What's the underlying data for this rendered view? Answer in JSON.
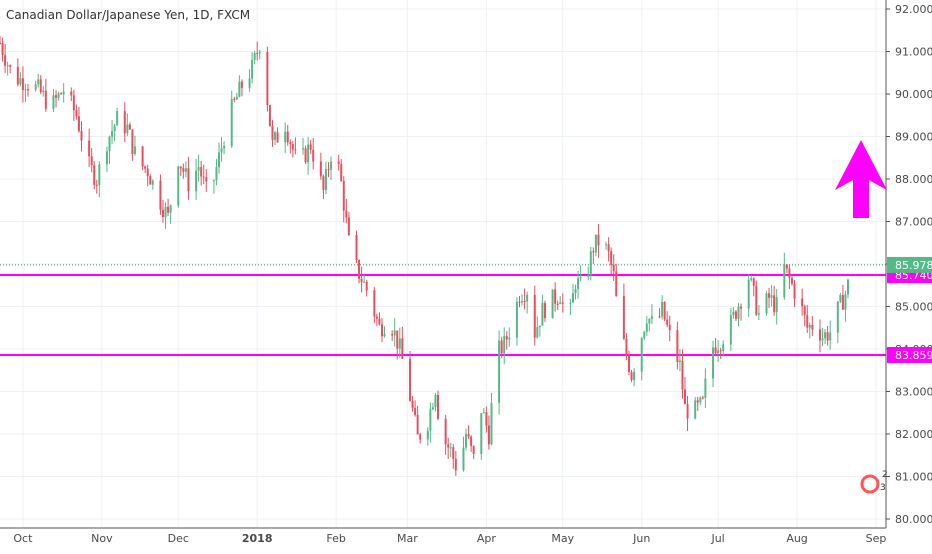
{
  "chart_title": "Canadian Dollar/Japanese Yen, 1D, FXCM",
  "colors": {
    "up": "#53b987",
    "down": "#eb4d5c",
    "level": "#ff00ff",
    "last_price_bg": "#53b987",
    "grid": "#eef1f5",
    "axis_text": "#4a4a4a",
    "last_price_line": "#3c8e5e"
  },
  "chart_data": {
    "type": "candlestick",
    "title": "Canadian Dollar/Japanese Yen, 1D, FXCM",
    "ylim": [
      79.9,
      92.2
    ],
    "y_ticks": [
      "80.000",
      "81.000",
      "82.000",
      "83.000",
      "84.000",
      "85.000",
      "86.000",
      "87.000",
      "88.000",
      "89.000",
      "90.000",
      "91.000",
      "92.000"
    ],
    "x_ticks": [
      "Oct",
      "Nov",
      "Dec",
      "2018",
      "Feb",
      "Mar",
      "Apr",
      "May",
      "Jun",
      "Jul",
      "Aug",
      "Sep"
    ],
    "x_tick_days": [
      9,
      40,
      70,
      101,
      132,
      160,
      191,
      221,
      252,
      282,
      313,
      344
    ],
    "xlim_days": [
      0,
      344
    ],
    "series_close": [
      [
        0,
        91.2
      ],
      [
        5,
        90.4
      ],
      [
        10,
        90.3
      ],
      [
        15,
        90.1
      ],
      [
        20,
        89.7
      ],
      [
        25,
        90.1
      ],
      [
        30,
        89.5
      ],
      [
        35,
        88.3
      ],
      [
        38,
        88.0
      ],
      [
        42,
        88.9
      ],
      [
        46,
        89.4
      ],
      [
        50,
        89.2
      ],
      [
        54,
        88.4
      ],
      [
        58,
        88.2
      ],
      [
        62,
        87.6
      ],
      [
        66,
        87.1
      ],
      [
        70,
        88.5
      ],
      [
        74,
        87.9
      ],
      [
        78,
        88.3
      ],
      [
        82,
        87.5
      ],
      [
        86,
        88.5
      ],
      [
        90,
        89.5
      ],
      [
        95,
        90.2
      ],
      [
        99,
        90.6
      ],
      [
        102,
        91.2
      ],
      [
        104,
        90.4
      ],
      [
        107,
        88.8
      ],
      [
        112,
        89.3
      ],
      [
        117,
        88.3
      ],
      [
        122,
        88.8
      ],
      [
        127,
        87.7
      ],
      [
        131,
        88.9
      ],
      [
        134,
        87.9
      ],
      [
        137,
        86.5
      ],
      [
        140,
        85.9
      ],
      [
        144,
        85.4
      ],
      [
        149,
        84.5
      ],
      [
        153,
        84.7
      ],
      [
        157,
        84.0
      ],
      [
        160,
        83.2
      ],
      [
        164,
        81.9
      ],
      [
        168,
        82.3
      ],
      [
        171,
        83.1
      ],
      [
        173,
        82.0
      ],
      [
        177,
        81.6
      ],
      [
        180,
        81.1
      ],
      [
        183,
        82.0
      ],
      [
        186,
        81.4
      ],
      [
        189,
        82.6
      ],
      [
        192,
        82.0
      ],
      [
        195,
        83.9
      ],
      [
        198,
        84.1
      ],
      [
        201,
        84.6
      ],
      [
        204,
        85.3
      ],
      [
        207,
        85.4
      ],
      [
        210,
        84.4
      ],
      [
        213,
        84.9
      ],
      [
        216,
        85.1
      ],
      [
        220,
        85.3
      ],
      [
        223,
        84.5
      ],
      [
        226,
        85.6
      ],
      [
        229,
        85.4
      ],
      [
        233,
        86.4
      ],
      [
        236,
        86.6
      ],
      [
        239,
        86.2
      ],
      [
        241,
        85.7
      ],
      [
        243,
        84.6
      ],
      [
        245,
        84.1
      ],
      [
        248,
        83.4
      ],
      [
        251,
        84.1
      ],
      [
        254,
        84.8
      ],
      [
        257,
        84.5
      ],
      [
        260,
        84.9
      ],
      [
        264,
        84.1
      ],
      [
        267,
        83.6
      ],
      [
        269,
        82.6
      ],
      [
        272,
        82.5
      ],
      [
        276,
        82.7
      ],
      [
        279,
        84.0
      ],
      [
        283,
        84.2
      ],
      [
        287,
        84.6
      ],
      [
        291,
        85.2
      ],
      [
        294,
        85.7
      ],
      [
        298,
        84.8
      ],
      [
        302,
        85.2
      ],
      [
        305,
        85.0
      ],
      [
        308,
        85.9
      ],
      [
        311,
        85.5
      ],
      [
        314,
        85.1
      ],
      [
        317,
        84.5
      ],
      [
        320,
        84.6
      ],
      [
        323,
        84.3
      ],
      [
        326,
        84.4
      ],
      [
        329,
        84.9
      ],
      [
        332,
        85.3
      ],
      [
        335,
        85.9
      ]
    ],
    "levels": [
      {
        "label": "85.740",
        "value": 85.74
      },
      {
        "label": "83.859",
        "value": 83.859
      }
    ],
    "last_price": {
      "label": "85.978",
      "value": 85.978
    },
    "annotation": {
      "type": "up-arrow",
      "color": "#ff00ff"
    },
    "badge_numbers": [
      "2",
      "3"
    ]
  }
}
